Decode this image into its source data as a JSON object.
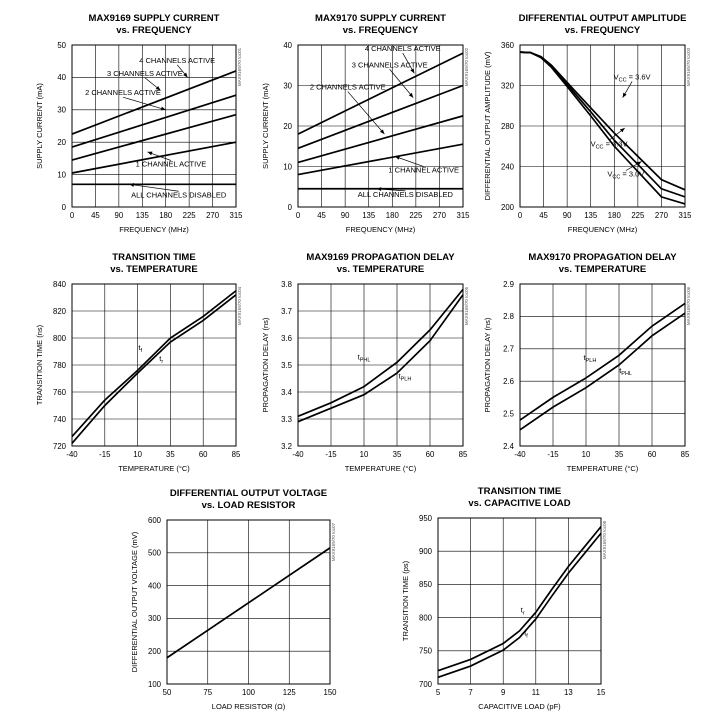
{
  "chart_data": [
    {
      "type": "line",
      "title": "MAX9169 SUPPLY CURRENT",
      "subtitle": "vs. FREQUENCY",
      "xlabel": "FREQUENCY (MHz)",
      "ylabel": "SUPPLY CURRENT (mA)",
      "xlim": [
        0,
        315
      ],
      "ylim": [
        0,
        50
      ],
      "xticks": [
        0,
        45,
        90,
        135,
        180,
        225,
        270,
        315
      ],
      "yticks": [
        0,
        10,
        20,
        30,
        40,
        50
      ],
      "grid": true,
      "ref_code": "MAX9169/70 toc01",
      "series": [
        {
          "name": "ALL CHANNELS DISABLED",
          "x": [
            0,
            315
          ],
          "y": [
            7,
            7
          ]
        },
        {
          "name": "1 CHANNEL ACTIVE",
          "x": [
            0,
            315
          ],
          "y": [
            10.5,
            20
          ]
        },
        {
          "name": "2 CHANNELS ACTIVE",
          "x": [
            0,
            315
          ],
          "y": [
            14.5,
            28.5
          ]
        },
        {
          "name": "3 CHANNELS ACTIVE",
          "x": [
            0,
            315
          ],
          "y": [
            18.5,
            34.5
          ]
        },
        {
          "name": "4 CHANNELS ACTIVE",
          "x": [
            0,
            315
          ],
          "y": [
            22.5,
            42
          ]
        }
      ],
      "annotations": [
        {
          "text": "4 CHANNELS ACTIVE",
          "x": 202,
          "y": 44.5,
          "tx": 222,
          "ty": 40
        },
        {
          "text": "3 CHANNELS ACTIVE",
          "x": 140,
          "y": 40.5,
          "tx": 170,
          "ty": 36
        },
        {
          "text": "2 CHANNELS ACTIVE",
          "x": 98,
          "y": 34.5,
          "tx": 180,
          "ty": 30
        },
        {
          "text": "1 CHANNEL ACTIVE",
          "x": 190,
          "y": 12.5,
          "tx": 145,
          "ty": 17
        },
        {
          "text": "ALL CHANNELS DISABLED",
          "x": 205,
          "y": 3,
          "tx": 110,
          "ty": 7
        }
      ]
    },
    {
      "type": "line",
      "title": "MAX9170 SUPPLY CURRENT",
      "subtitle": "vs. FREQUENCY",
      "xlabel": "FREQUENCY (MHz)",
      "ylabel": "SUPPLY CURRENT (mA)",
      "xlim": [
        0,
        315
      ],
      "ylim": [
        0,
        40
      ],
      "xticks": [
        0,
        45,
        90,
        135,
        180,
        225,
        270,
        315
      ],
      "yticks": [
        0,
        10,
        20,
        30,
        40
      ],
      "grid": true,
      "ref_code": "MAX9169/70 toc02",
      "series": [
        {
          "name": "ALL CHANNELS DISABLED",
          "x": [
            0,
            315
          ],
          "y": [
            4.5,
            4.5
          ]
        },
        {
          "name": "1 CHANNEL ACTIVE",
          "x": [
            0,
            315
          ],
          "y": [
            8,
            15.5
          ]
        },
        {
          "name": "2 CHANNELS ACTIVE",
          "x": [
            0,
            315
          ],
          "y": [
            11,
            22.5
          ]
        },
        {
          "name": "3 CHANNELS ACTIVE",
          "x": [
            0,
            315
          ],
          "y": [
            14.5,
            30
          ]
        },
        {
          "name": "4 CHANNELS ACTIVE",
          "x": [
            0,
            315
          ],
          "y": [
            18,
            38
          ]
        }
      ],
      "annotations": [
        {
          "text": "4 CHANNELS ACTIVE",
          "x": 200,
          "y": 38.5,
          "tx": 222,
          "ty": 33
        },
        {
          "text": "3 CHANNELS ACTIVE",
          "x": 175,
          "y": 34.5,
          "tx": 220,
          "ty": 27
        },
        {
          "text": "2 CHANNELS ACTIVE",
          "x": 95,
          "y": 29,
          "tx": 165,
          "ty": 18
        },
        {
          "text": "1 CHANNEL ACTIVE",
          "x": 240,
          "y": 8.5,
          "tx": 185,
          "ty": 12.5
        },
        {
          "text": "ALL CHANNELS DISABLED",
          "x": 205,
          "y": 2.5,
          "tx": 150,
          "ty": 4.5
        }
      ]
    },
    {
      "type": "line",
      "title": "DIFFERENTIAL OUTPUT AMPLITUDE",
      "subtitle": "vs. FREQUENCY",
      "xlabel": "FREQUENCY (MHz)",
      "ylabel": "DIFFERENTIAL OUTPUT AMPLITUDE (mV)",
      "xlim": [
        0,
        315
      ],
      "ylim": [
        200,
        360
      ],
      "xticks": [
        0,
        45,
        90,
        135,
        180,
        225,
        270,
        315
      ],
      "yticks": [
        200,
        240,
        280,
        320,
        360
      ],
      "grid": true,
      "ref_code": "MAX9169/70 toc03",
      "series": [
        {
          "name": "VCC = 3.6V",
          "x": [
            0,
            20,
            40,
            60,
            90,
            135,
            180,
            225,
            270,
            315
          ],
          "y": [
            353,
            352.5,
            348.5,
            340,
            323,
            298,
            273,
            250,
            227,
            217
          ]
        },
        {
          "name": "VCC = 3.3V",
          "x": [
            0,
            20,
            40,
            60,
            90,
            135,
            180,
            225,
            270,
            315
          ],
          "y": [
            353,
            352.5,
            348,
            339,
            321,
            294,
            266,
            242,
            218,
            210
          ]
        },
        {
          "name": "VCC = 3.0V",
          "x": [
            0,
            20,
            40,
            60,
            90,
            135,
            180,
            225,
            270,
            315
          ],
          "y": [
            353,
            352.5,
            347.5,
            338,
            319,
            290,
            260,
            235,
            210,
            203
          ]
        }
      ],
      "annotations": [
        {
          "text": "VCC = 3.6V",
          "sub": "CC",
          "x": 214,
          "y": 326,
          "tx": 196,
          "ty": 308
        },
        {
          "text": "VCC = 3.3V",
          "sub": "CC",
          "x": 170,
          "y": 260,
          "tx": 200,
          "ty": 278
        },
        {
          "text": "VCC = 3.0V",
          "sub": "CC",
          "x": 202,
          "y": 230,
          "tx": 232,
          "ty": 245
        }
      ]
    },
    {
      "type": "line",
      "title": "TRANSITION TIME",
      "subtitle": "vs. TEMPERATURE",
      "xlabel": "TEMPERATURE (°C)",
      "ylabel": "TRANSITION TIME (ns)",
      "xlim": [
        -40,
        85
      ],
      "ylim": [
        720,
        840
      ],
      "xticks": [
        -40,
        -15,
        10,
        35,
        60,
        85
      ],
      "yticks": [
        720,
        740,
        760,
        780,
        800,
        820,
        840
      ],
      "grid": true,
      "ref_code": "MAX9169/70 toc04",
      "series": [
        {
          "name": "tr",
          "x": [
            -40,
            -15,
            10,
            35,
            60,
            85
          ],
          "y": [
            722,
            750,
            774,
            797,
            813,
            832
          ]
        },
        {
          "name": "tf",
          "x": [
            -40,
            -15,
            10,
            35,
            60,
            85
          ],
          "y": [
            727,
            754,
            776,
            800,
            816,
            835
          ]
        }
      ],
      "annotations": [
        {
          "text": "tf",
          "sub": "f",
          "x": 12,
          "y": 791
        },
        {
          "text": "tr",
          "sub": "r",
          "x": 28,
          "y": 783
        }
      ]
    },
    {
      "type": "line",
      "title": "MAX9169 PROPAGATION DELAY",
      "subtitle": "vs. TEMPERATURE",
      "xlabel": "TEMPERATURE (°C)",
      "ylabel": "PROPAGATION DELAY (ns)",
      "xlim": [
        -40,
        85
      ],
      "ylim": [
        3.2,
        3.8
      ],
      "xticks": [
        -40,
        -15,
        10,
        35,
        60,
        85
      ],
      "yticks": [
        3.2,
        3.3,
        3.4,
        3.5,
        3.6,
        3.7,
        3.8
      ],
      "grid": true,
      "ref_code": "MAX9169/70 toc05",
      "series": [
        {
          "name": "tPHL",
          "x": [
            -40,
            -15,
            10,
            35,
            60,
            85
          ],
          "y": [
            3.31,
            3.36,
            3.42,
            3.51,
            3.63,
            3.78
          ]
        },
        {
          "name": "tPLH",
          "x": [
            -40,
            -15,
            10,
            35,
            60,
            85
          ],
          "y": [
            3.29,
            3.34,
            3.39,
            3.47,
            3.59,
            3.76
          ]
        }
      ],
      "annotations": [
        {
          "text": "tPHL",
          "sub": "PHL",
          "x": 10,
          "y": 3.52
        },
        {
          "text": "tPLH",
          "sub": "PLH",
          "x": 41,
          "y": 3.45
        }
      ]
    },
    {
      "type": "line",
      "title": "MAX9170 PROPAGATION DELAY",
      "subtitle": "vs. TEMPERATURE",
      "xlabel": "TEMPERATURE (°C)",
      "ylabel": "PROPAGATION DELAY (ns)",
      "xlim": [
        -40,
        85
      ],
      "ylim": [
        2.4,
        2.9
      ],
      "xticks": [
        -40,
        -15,
        10,
        35,
        60,
        85
      ],
      "yticks": [
        2.4,
        2.5,
        2.6,
        2.7,
        2.8,
        2.9
      ],
      "grid": true,
      "ref_code": "MAX9169/70 toc06",
      "series": [
        {
          "name": "tPLH",
          "x": [
            -40,
            -15,
            10,
            35,
            60,
            85
          ],
          "y": [
            2.48,
            2.55,
            2.61,
            2.68,
            2.77,
            2.84
          ]
        },
        {
          "name": "tPHL",
          "x": [
            -40,
            -15,
            10,
            35,
            60,
            85
          ],
          "y": [
            2.45,
            2.52,
            2.58,
            2.65,
            2.74,
            2.81
          ]
        }
      ],
      "annotations": [
        {
          "text": "tPLH",
          "sub": "PLH",
          "x": 13,
          "y": 2.665
        },
        {
          "text": "tPHL",
          "sub": "PHL",
          "x": 40,
          "y": 2.625
        }
      ]
    },
    {
      "type": "line",
      "title": "DIFFERENTIAL OUTPUT VOLTAGE",
      "subtitle": "vs. LOAD RESISTOR",
      "xlabel": "LOAD RESISTOR (Ω)",
      "ylabel": "DIFFERENTIAL OUTPUT VOLTAGE (mV)",
      "xlim": [
        50,
        150
      ],
      "ylim": [
        100,
        600
      ],
      "xticks": [
        50,
        75,
        100,
        125,
        150
      ],
      "yticks": [
        100,
        200,
        300,
        400,
        500,
        600
      ],
      "grid": true,
      "ref_code": "MAX9169/70 toc07",
      "series": [
        {
          "name": "",
          "x": [
            50,
            150
          ],
          "y": [
            180,
            515
          ]
        }
      ],
      "annotations": []
    },
    {
      "type": "line",
      "title": "TRANSITION TIME",
      "subtitle": "vs. CAPACITIVE LOAD",
      "xlabel": "CAPACITIVE LOAD (pF)",
      "ylabel": "TRANSITION TIME (ps)",
      "xlim": [
        5,
        15
      ],
      "ylim": [
        700,
        950
      ],
      "xticks": [
        5,
        7,
        9,
        11,
        13,
        15
      ],
      "yticks": [
        700,
        750,
        800,
        850,
        900,
        950
      ],
      "grid": true,
      "ref_code": "MAX9169/70 toc08",
      "series": [
        {
          "name": "tr",
          "x": [
            5,
            7,
            9,
            10,
            11,
            12,
            13,
            14,
            15
          ],
          "y": [
            720,
            737,
            761,
            780,
            808,
            843,
            877,
            907,
            937
          ]
        },
        {
          "name": "tf",
          "x": [
            5,
            7,
            9,
            10,
            11,
            12,
            13,
            14,
            15
          ],
          "y": [
            710,
            727,
            751,
            770,
            798,
            833,
            867,
            897,
            927
          ]
        }
      ],
      "annotations": [
        {
          "text": "tr",
          "sub": "r",
          "x": 10.2,
          "y": 808
        },
        {
          "text": "tf",
          "sub": "f",
          "x": 10.4,
          "y": 773
        }
      ]
    }
  ]
}
